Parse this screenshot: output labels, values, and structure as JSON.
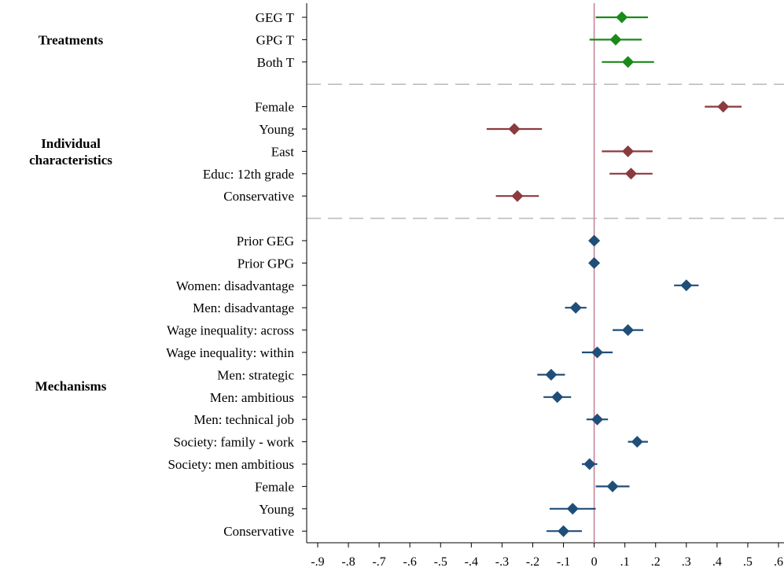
{
  "chart_data": {
    "type": "scatter",
    "subtype": "coefficient-plot",
    "title": "",
    "xlabel": "",
    "ylabel": "",
    "xlim": [
      -0.9,
      0.6
    ],
    "x_ticks": [
      "-.9",
      "-.8",
      "-.7",
      "-.6",
      "-.5",
      "-.4",
      "-.3",
      "-.2",
      "-.1",
      "0",
      ".1",
      ".2",
      ".3",
      ".4",
      ".5",
      ".6"
    ],
    "x_tick_values": [
      -0.9,
      -0.8,
      -0.7,
      -0.6,
      -0.5,
      -0.4,
      -0.3,
      -0.2,
      -0.1,
      0,
      0.1,
      0.2,
      0.3,
      0.4,
      0.5,
      0.6
    ],
    "reference_line_x": 0,
    "groups": [
      {
        "name": "Treatments",
        "color": "#1a8a1a",
        "items": [
          {
            "label": "GEG T",
            "coef": 0.09,
            "ci": [
              0.005,
              0.175
            ]
          },
          {
            "label": "GPG T",
            "coef": 0.07,
            "ci": [
              -0.015,
              0.155
            ]
          },
          {
            "label": "Both T",
            "coef": 0.11,
            "ci": [
              0.025,
              0.195
            ]
          }
        ]
      },
      {
        "name": "Individual characteristics",
        "name_lines": [
          "Individual",
          "characteristics"
        ],
        "color": "#8b3a3e",
        "items": [
          {
            "label": "Female",
            "coef": 0.42,
            "ci": [
              0.36,
              0.48
            ]
          },
          {
            "label": "Young",
            "coef": -0.26,
            "ci": [
              -0.35,
              -0.17
            ]
          },
          {
            "label": "East",
            "coef": 0.11,
            "ci": [
              0.025,
              0.19
            ]
          },
          {
            "label": "Educ: 12th grade",
            "coef": 0.12,
            "ci": [
              0.05,
              0.19
            ]
          },
          {
            "label": "Conservative",
            "coef": -0.25,
            "ci": [
              -0.32,
              -0.18
            ]
          }
        ]
      },
      {
        "name": "Mechanisms",
        "color": "#1f4e79",
        "items": [
          {
            "label": "Prior GEG",
            "coef": 0.0,
            "ci": [
              -0.005,
              0.005
            ]
          },
          {
            "label": "Prior GPG",
            "coef": 0.0,
            "ci": [
              -0.005,
              0.005
            ]
          },
          {
            "label": "Women: disadvantage",
            "coef": 0.3,
            "ci": [
              0.26,
              0.34
            ]
          },
          {
            "label": "Men: disadvantage",
            "coef": -0.06,
            "ci": [
              -0.095,
              -0.025
            ]
          },
          {
            "label": "Wage inequality: across",
            "coef": 0.11,
            "ci": [
              0.06,
              0.16
            ]
          },
          {
            "label": "Wage inequality: within",
            "coef": 0.01,
            "ci": [
              -0.04,
              0.06
            ]
          },
          {
            "label": "Men: strategic",
            "coef": -0.14,
            "ci": [
              -0.185,
              -0.095
            ]
          },
          {
            "label": "Men: ambitious",
            "coef": -0.12,
            "ci": [
              -0.165,
              -0.075
            ]
          },
          {
            "label": "Men: technical job",
            "coef": 0.01,
            "ci": [
              -0.025,
              0.045
            ]
          },
          {
            "label": "Society: family - work",
            "coef": 0.14,
            "ci": [
              0.11,
              0.175
            ]
          },
          {
            "label": "Society: men ambitious",
            "coef": -0.015,
            "ci": [
              -0.04,
              0.01
            ]
          },
          {
            "label": "Female",
            "coef": 0.06,
            "ci": [
              0.005,
              0.115
            ]
          },
          {
            "label": "Young",
            "coef": -0.07,
            "ci": [
              -0.145,
              0.005
            ]
          },
          {
            "label": "Conservative",
            "coef": -0.1,
            "ci": [
              -0.155,
              -0.04
            ]
          }
        ]
      }
    ],
    "colors": {
      "reference_line": "#c7859a",
      "separator": "#bdbdbd",
      "axis": "#000000"
    }
  }
}
